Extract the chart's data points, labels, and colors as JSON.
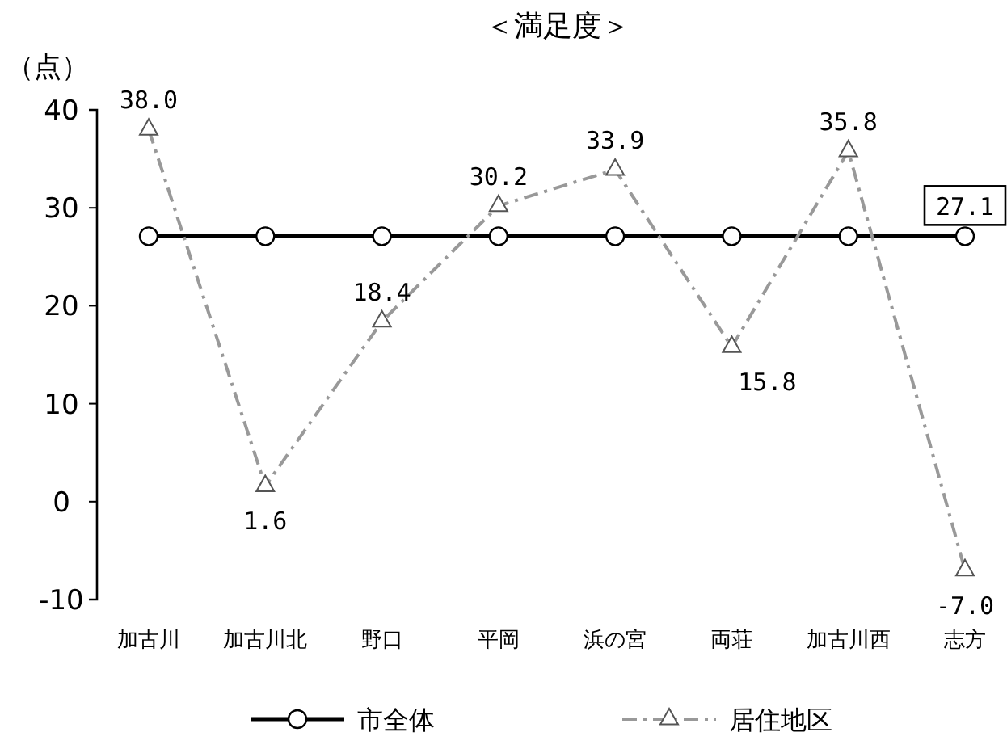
{
  "chart_data": {
    "type": "line",
    "title": "＜満足度＞",
    "ylabel": "（点）",
    "categories": [
      "加古川",
      "加古川北",
      "野口",
      "平岡",
      "浜の宮",
      "両荘",
      "加古川西",
      "志方"
    ],
    "series": [
      {
        "name": "市全体",
        "color": "#000000",
        "marker": "circle",
        "line_style": "solid",
        "values": [
          27.1,
          27.1,
          27.1,
          27.1,
          27.1,
          27.1,
          27.1,
          27.1
        ],
        "value_labels": [
          null,
          null,
          null,
          null,
          null,
          null,
          null,
          "27.1"
        ]
      },
      {
        "name": "居住地区",
        "color": "#999999",
        "marker": "triangle",
        "line_style": "dashdot",
        "values": [
          38.0,
          1.6,
          18.4,
          30.2,
          33.9,
          15.8,
          35.8,
          -7.0
        ],
        "value_labels": [
          "38.0",
          "1.6",
          "18.4",
          "30.2",
          "33.9",
          "15.8",
          "35.8",
          "-7.0"
        ]
      }
    ],
    "ylim": [
      -10,
      40
    ],
    "yticks": [
      -10,
      0,
      10,
      20,
      30,
      40
    ],
    "grid": false,
    "legend": "bottom"
  }
}
